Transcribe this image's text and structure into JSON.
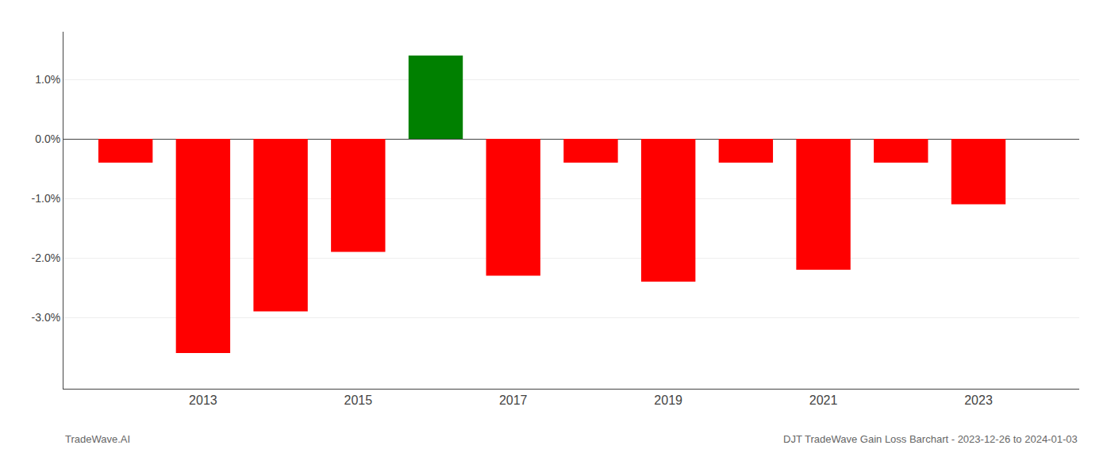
{
  "chart_data": {
    "type": "bar",
    "x": [
      2012,
      2013,
      2014,
      2015,
      2016,
      2017,
      2018,
      2019,
      2020,
      2021,
      2022,
      2023
    ],
    "values": [
      -0.004,
      -0.036,
      -0.029,
      -0.019,
      0.014,
      -0.023,
      -0.004,
      -0.024,
      -0.004,
      -0.022,
      -0.004,
      -0.011
    ],
    "colors": [
      "#ff0000",
      "#ff0000",
      "#ff0000",
      "#ff0000",
      "#008000",
      "#ff0000",
      "#ff0000",
      "#ff0000",
      "#ff0000",
      "#ff0000",
      "#ff0000",
      "#ff0000"
    ],
    "xlim": [
      2011.2,
      2024.3
    ],
    "xticks": [
      2013,
      2015,
      2017,
      2019,
      2021,
      2023
    ],
    "ylim": [
      -0.042,
      0.018
    ],
    "yticks": [
      {
        "value": -0.03,
        "label": "-3.0%"
      },
      {
        "value": -0.02,
        "label": "-2.0%"
      },
      {
        "value": -0.01,
        "label": "-1.0%"
      },
      {
        "value": 0.0,
        "label": "0.0%"
      },
      {
        "value": 0.01,
        "label": "1.0%"
      }
    ],
    "grid": true,
    "annotations": [
      "TradeWave.AI",
      "DJT TradeWave Gain Loss Barchart - 2023-12-26 to 2024-01-03"
    ]
  }
}
